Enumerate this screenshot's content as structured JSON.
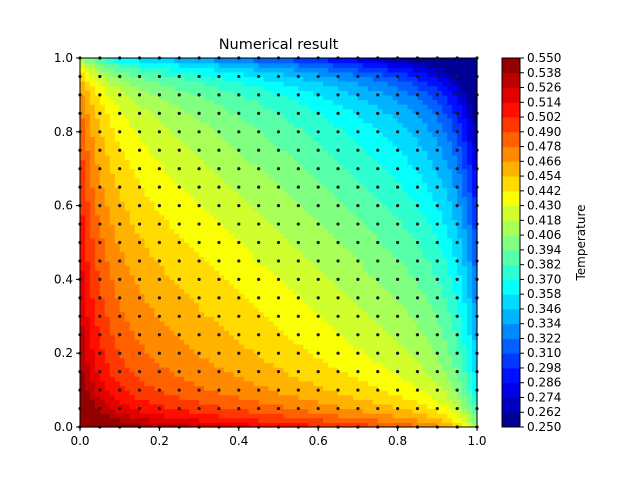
{
  "chart_data": {
    "type": "heatmap",
    "subtype": "filled-contour",
    "title": "Numerical result",
    "xlabel": "",
    "ylabel": "",
    "xlim": [
      0.0,
      1.0
    ],
    "ylim": [
      0.0,
      1.0
    ],
    "x_ticks": [
      "0.0",
      "0.2",
      "0.4",
      "0.6",
      "0.8",
      "1.0"
    ],
    "y_ticks": [
      "0.0",
      "0.2",
      "0.4",
      "0.6",
      "0.8",
      "1.0"
    ],
    "colormap": "jet",
    "colorbar": {
      "label": "Temperature",
      "min": 0.25,
      "max": 0.55,
      "step": 0.012,
      "ticks": [
        "0.250",
        "0.262",
        "0.274",
        "0.286",
        "0.298",
        "0.310",
        "0.322",
        "0.334",
        "0.346",
        "0.358",
        "0.370",
        "0.382",
        "0.394",
        "0.406",
        "0.418",
        "0.430",
        "0.442",
        "0.454",
        "0.466",
        "0.478",
        "0.490",
        "0.502",
        "0.514",
        "0.526",
        "0.538",
        "0.550"
      ]
    },
    "grid_points": {
      "n": 21,
      "spacing": 0.05
    },
    "field_description": {
      "top_edge_value": 0.25,
      "right_edge_value": 0.25,
      "left_edge_value": 0.5,
      "bottom_edge_value": 0.5,
      "corner_values": {
        "top_left": 0.38,
        "bottom_right": 0.38
      }
    }
  }
}
